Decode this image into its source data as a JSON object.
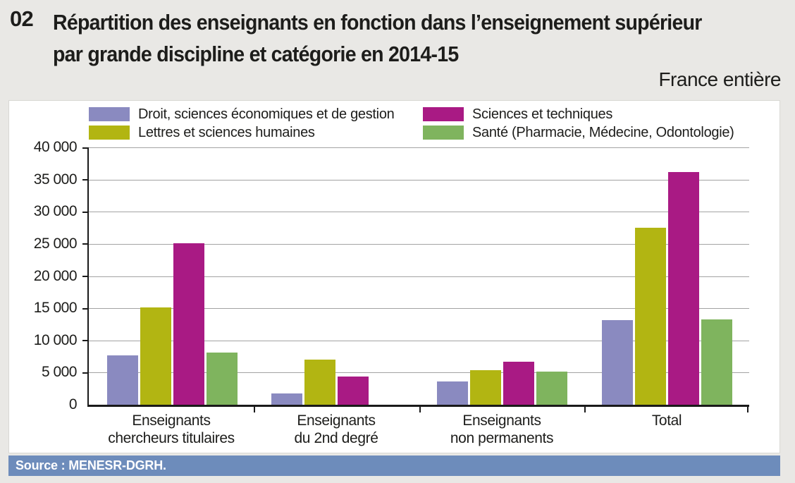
{
  "header": {
    "figure_number": "02",
    "title_lines": [
      "Répartition des enseignants en fonction dans l’enseignement supérieur",
      "par grande discipline et catégorie en 2014-15"
    ],
    "region_label": "France entière"
  },
  "source_bar": {
    "text": "Source : MENESR-DGRH."
  },
  "colors": {
    "page_background": "#e9e8e5",
    "panel_background": "#ffffff",
    "axis": "#1a1a1a",
    "gridline": "#a3a3a3",
    "source_bar_background": "#6d8cbb",
    "source_bar_text": "#ffffff"
  },
  "chart_data": {
    "type": "bar",
    "title": "Répartition des enseignants en fonction dans l’enseignement supérieur par grande discipline et catégorie en 2014-15",
    "subtitle": "France entière",
    "categories": [
      "Enseignants chercheurs titulaires",
      "Enseignants du 2nd degré",
      "Enseignants non permanents",
      "Total"
    ],
    "category_label_lines": [
      [
        "Enseignants",
        "chercheurs titulaires"
      ],
      [
        "Enseignants",
        "du 2nd degré"
      ],
      [
        "Enseignants",
        "non permanents"
      ],
      [
        "Total"
      ]
    ],
    "series": [
      {
        "name": "Droit, sciences économiques et de gestion",
        "color": "#8a8ac0",
        "values": [
          7700,
          1800,
          3600,
          13100
        ]
      },
      {
        "name": "Lettres et sciences humaines",
        "color": "#b2b512",
        "values": [
          15100,
          7000,
          5400,
          27500
        ]
      },
      {
        "name": "Sciences et techniques",
        "color": "#a91a84",
        "values": [
          25100,
          4400,
          6700,
          36200
        ]
      },
      {
        "name": "Santé (Pharmacie, Médecine, Odontologie)",
        "color": "#7fb45e",
        "values": [
          8100,
          null,
          5200,
          13300
        ]
      }
    ],
    "xlabel": "",
    "ylabel": "",
    "ylim": [
      0,
      40000
    ],
    "ytick_step": 5000,
    "ytick_labels": [
      "40 000",
      "35 000",
      "30 000",
      "25 000",
      "20 000",
      "15 000",
      "10 000",
      "5 000",
      "0"
    ],
    "grid": true,
    "legend_position": "top"
  }
}
